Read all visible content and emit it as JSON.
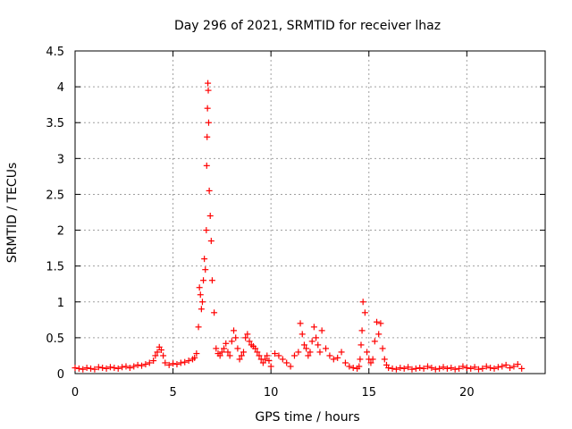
{
  "chart_data": {
    "type": "scatter",
    "title": "Day 296 of 2021, SRMTID for receiver lhaz",
    "xlabel": "GPS time / hours",
    "ylabel": "SRMTID / TECUs",
    "xlim": [
      0,
      24
    ],
    "ylim": [
      0,
      4.5
    ],
    "x_ticks": [
      0,
      5,
      10,
      15,
      20
    ],
    "x_tick_labels": [
      "0",
      "5",
      "10",
      "15",
      "20"
    ],
    "y_ticks": [
      0,
      0.5,
      1,
      1.5,
      2,
      2.5,
      3,
      3.5,
      4,
      4.5
    ],
    "y_tick_labels": [
      "0",
      "0.5",
      "1",
      "1.5",
      "2",
      "2.5",
      "3",
      "3.5",
      "4",
      "4.5"
    ],
    "grid": true,
    "marker": "+",
    "marker_color": "#ff0000",
    "series": [
      {
        "x": [
          0.0,
          0.2,
          0.4,
          0.6,
          0.8,
          1.0,
          1.2,
          1.4,
          1.6,
          1.8,
          2.0,
          2.2,
          2.4,
          2.6,
          2.8,
          3.0,
          3.2,
          3.4,
          3.6,
          3.8,
          4.0,
          4.1,
          4.2,
          4.3,
          4.4,
          4.5,
          4.6,
          4.8,
          5.0,
          5.2,
          5.4,
          5.6,
          5.8,
          6.0,
          6.1,
          6.2,
          6.3,
          6.35,
          6.4,
          6.45,
          6.5,
          6.55,
          6.6,
          6.65,
          6.7,
          6.72,
          6.74,
          6.76,
          6.78,
          6.8,
          6.82,
          6.85,
          6.9,
          6.95,
          7.0,
          7.1,
          7.2,
          7.3,
          7.4,
          7.5,
          7.6,
          7.7,
          7.8,
          7.9,
          8.0,
          8.1,
          8.2,
          8.3,
          8.4,
          8.5,
          8.6,
          8.7,
          8.8,
          8.9,
          9.0,
          9.1,
          9.2,
          9.3,
          9.4,
          9.5,
          9.6,
          9.7,
          9.8,
          9.9,
          10.0,
          10.2,
          10.4,
          10.6,
          10.8,
          11.0,
          11.2,
          11.4,
          11.5,
          11.6,
          11.7,
          11.8,
          11.9,
          12.0,
          12.1,
          12.2,
          12.3,
          12.4,
          12.5,
          12.6,
          12.8,
          13.0,
          13.2,
          13.4,
          13.6,
          13.8,
          14.0,
          14.2,
          14.4,
          14.5,
          14.55,
          14.6,
          14.65,
          14.7,
          14.8,
          14.9,
          15.0,
          15.1,
          15.2,
          15.3,
          15.4,
          15.5,
          15.6,
          15.7,
          15.8,
          15.9,
          16.0,
          16.2,
          16.4,
          16.6,
          16.8,
          17.0,
          17.2,
          17.4,
          17.6,
          17.8,
          18.0,
          18.2,
          18.4,
          18.6,
          18.8,
          19.0,
          19.2,
          19.4,
          19.6,
          19.8,
          20.0,
          20.2,
          20.4,
          20.6,
          20.8,
          21.0,
          21.2,
          21.4,
          21.6,
          21.8,
          22.0,
          22.2,
          22.4,
          22.6,
          22.8
        ],
        "y": [
          0.08,
          0.07,
          0.06,
          0.08,
          0.07,
          0.06,
          0.09,
          0.08,
          0.07,
          0.09,
          0.08,
          0.07,
          0.09,
          0.1,
          0.08,
          0.1,
          0.12,
          0.11,
          0.13,
          0.15,
          0.18,
          0.25,
          0.3,
          0.37,
          0.33,
          0.25,
          0.15,
          0.12,
          0.14,
          0.13,
          0.15,
          0.16,
          0.18,
          0.2,
          0.22,
          0.28,
          0.65,
          1.2,
          1.1,
          0.9,
          1.0,
          1.3,
          1.6,
          1.45,
          2.0,
          2.9,
          3.3,
          3.7,
          4.05,
          3.95,
          3.5,
          2.55,
          2.2,
          1.85,
          1.3,
          0.85,
          0.35,
          0.28,
          0.25,
          0.3,
          0.35,
          0.42,
          0.3,
          0.25,
          0.45,
          0.6,
          0.5,
          0.35,
          0.2,
          0.25,
          0.3,
          0.5,
          0.55,
          0.45,
          0.4,
          0.38,
          0.35,
          0.3,
          0.25,
          0.2,
          0.15,
          0.2,
          0.25,
          0.18,
          0.1,
          0.28,
          0.25,
          0.2,
          0.15,
          0.1,
          0.25,
          0.3,
          0.7,
          0.55,
          0.4,
          0.35,
          0.25,
          0.3,
          0.45,
          0.65,
          0.5,
          0.4,
          0.3,
          0.6,
          0.35,
          0.25,
          0.2,
          0.22,
          0.3,
          0.15,
          0.1,
          0.08,
          0.07,
          0.1,
          0.2,
          0.4,
          0.6,
          1.0,
          0.85,
          0.3,
          0.2,
          0.15,
          0.2,
          0.45,
          0.72,
          0.55,
          0.7,
          0.35,
          0.2,
          0.12,
          0.08,
          0.07,
          0.06,
          0.08,
          0.07,
          0.09,
          0.06,
          0.07,
          0.08,
          0.07,
          0.1,
          0.08,
          0.06,
          0.07,
          0.09,
          0.07,
          0.08,
          0.06,
          0.07,
          0.1,
          0.08,
          0.07,
          0.09,
          0.06,
          0.07,
          0.1,
          0.08,
          0.07,
          0.09,
          0.1,
          0.12,
          0.08,
          0.1,
          0.13,
          0.07
        ]
      }
    ]
  }
}
